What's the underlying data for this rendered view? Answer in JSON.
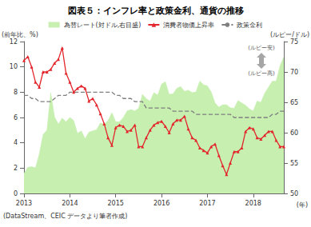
{
  "chart_data": {
    "type": "line",
    "title": "図表５：インフレ率と政策金利、通貨の推移",
    "y_label": "(前年比、%)",
    "y2_label": "(ルピー/ドル)",
    "x_label": "(年)",
    "source": "(DataStream、CEIC データより筆者作成)",
    "annotations": [
      "(ルピー安)",
      "(ルピー高)"
    ],
    "grid": false,
    "legend": "top",
    "categories": [
      "2013",
      null,
      null,
      null,
      null,
      null,
      null,
      null,
      null,
      null,
      null,
      null,
      "2014",
      null,
      null,
      null,
      null,
      null,
      null,
      null,
      null,
      null,
      null,
      null,
      "2015",
      null,
      null,
      null,
      null,
      null,
      null,
      null,
      null,
      null,
      null,
      null,
      "2016",
      null,
      null,
      null,
      null,
      null,
      null,
      null,
      null,
      null,
      null,
      null,
      "2017",
      null,
      null,
      null,
      null,
      null,
      null,
      null,
      null,
      null,
      null,
      null,
      "2018",
      null,
      null,
      null,
      null,
      null,
      null,
      null,
      null
    ],
    "ylim": [
      0,
      12
    ],
    "yticks": [
      0,
      2,
      4,
      6,
      8,
      10,
      12
    ],
    "y2lim": [
      50,
      75
    ],
    "y2ticks": [
      50,
      55,
      60,
      65,
      70,
      75
    ],
    "series": [
      {
        "name": "為替レート(対ドル,右目盛)",
        "type": "area",
        "axis": "y2",
        "color": "#c6efb0",
        "values": [
          53.3,
          54.3,
          54.4,
          54.2,
          56.5,
          59.7,
          60.4,
          66.6,
          62.6,
          61.4,
          62.4,
          61.8,
          62.5,
          62.0,
          59.9,
          60.3,
          59.0,
          60.1,
          60.3,
          60.5,
          61.6,
          61.4,
          62.0,
          63.3,
          61.8,
          61.8,
          62.5,
          63.6,
          63.8,
          63.6,
          64.0,
          66.3,
          65.6,
          65.2,
          66.6,
          66.2,
          68.0,
          68.4,
          66.3,
          66.4,
          67.3,
          67.6,
          66.8,
          67.0,
          66.6,
          66.7,
          68.5,
          67.9,
          67.7,
          66.7,
          64.9,
          64.2,
          64.6,
          64.6,
          64.1,
          64.0,
          65.3,
          64.9,
          64.5,
          63.9,
          63.6,
          65.2,
          65.0,
          66.5,
          67.5,
          68.5,
          68.5,
          71.0,
          72.5
        ]
      },
      {
        "name": "消費者物価上昇率",
        "type": "line",
        "color": "#e3262c",
        "marker": "triangle",
        "values": [
          10.5,
          10.8,
          10.0,
          8.8,
          8.4,
          9.6,
          9.6,
          9.8,
          10.3,
          10.6,
          11.5,
          9.5,
          8.8,
          8.0,
          8.3,
          8.5,
          8.3,
          7.3,
          7.5,
          7.0,
          6.3,
          5.5,
          4.4,
          3.8,
          5.2,
          5.4,
          5.3,
          4.9,
          5.0,
          5.4,
          3.7,
          3.7,
          4.4,
          5.0,
          5.4,
          5.6,
          5.7,
          5.3,
          4.8,
          5.5,
          5.8,
          5.8,
          6.1,
          5.1,
          4.4,
          4.2,
          3.6,
          3.4,
          3.2,
          3.7,
          3.9,
          3.0,
          2.2,
          1.5,
          2.4,
          3.3,
          3.3,
          3.6,
          4.9,
          5.2,
          5.1,
          4.4,
          4.3,
          4.6,
          4.9,
          4.9,
          4.2,
          3.7,
          3.7
        ]
      },
      {
        "name": "政策金利",
        "type": "line",
        "color": "#7f7f7f",
        "line_style": "dashed",
        "values": [
          7.75,
          7.75,
          7.5,
          7.5,
          7.25,
          7.25,
          7.25,
          7.25,
          7.5,
          7.75,
          7.75,
          7.75,
          8.0,
          8.0,
          8.0,
          8.0,
          8.0,
          8.0,
          8.0,
          8.0,
          8.0,
          8.0,
          8.0,
          8.0,
          7.75,
          7.75,
          7.5,
          7.5,
          7.5,
          7.25,
          7.25,
          7.25,
          6.75,
          6.75,
          6.75,
          6.75,
          6.75,
          6.75,
          6.75,
          6.5,
          6.5,
          6.5,
          6.5,
          6.5,
          6.5,
          6.25,
          6.25,
          6.25,
          6.25,
          6.25,
          6.25,
          6.25,
          6.25,
          6.25,
          6.25,
          6.0,
          6.0,
          6.0,
          6.0,
          6.0,
          6.0,
          6.0,
          6.0,
          6.0,
          6.0,
          6.25,
          6.25,
          6.5,
          6.5
        ]
      }
    ]
  }
}
